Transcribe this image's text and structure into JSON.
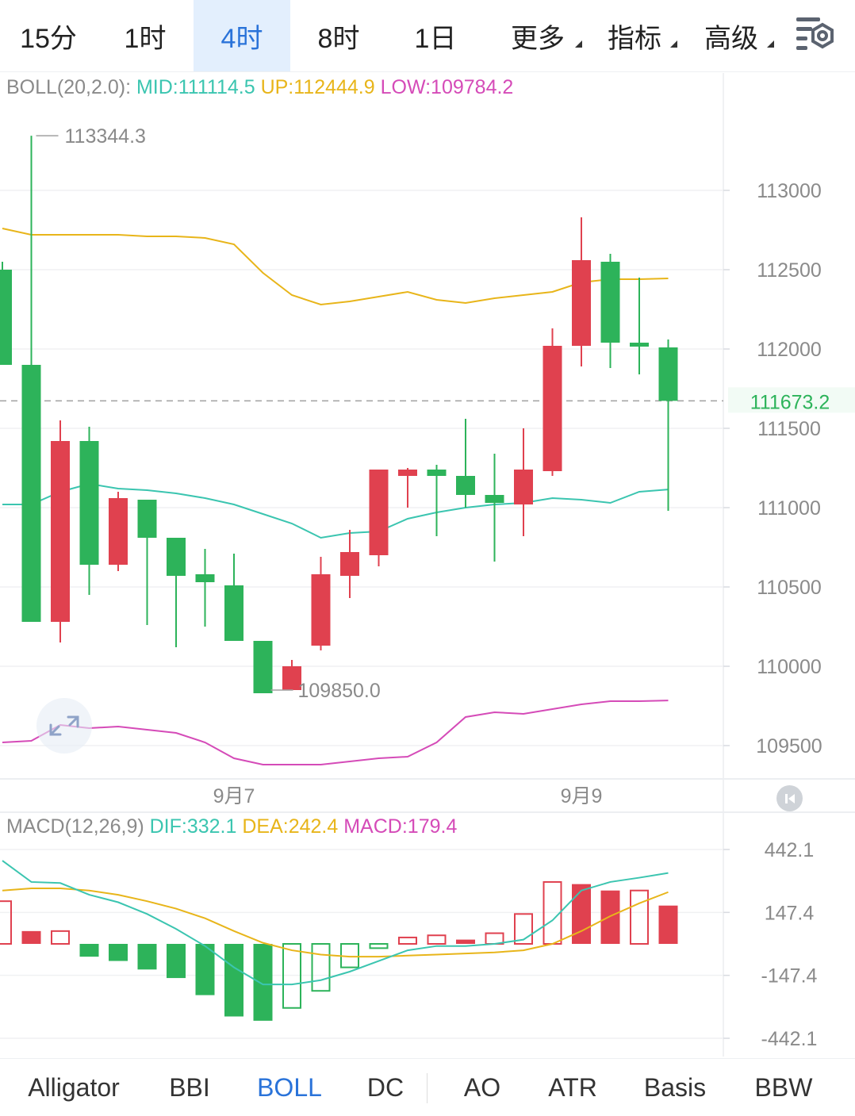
{
  "colors": {
    "up": "#e0414f",
    "down": "#2db35a",
    "mid": "#3bc5b0",
    "upper": "#e8b51a",
    "lower": "#d54bb8",
    "accent": "#2a73d9",
    "grid": "#f0f1f3",
    "axis_text": "#8a8a8a"
  },
  "timeframes": [
    {
      "label": "15分",
      "active": false
    },
    {
      "label": "1时",
      "active": false
    },
    {
      "label": "4时",
      "active": true
    },
    {
      "label": "8时",
      "active": false
    },
    {
      "label": "1日",
      "active": false
    },
    {
      "label": "更多",
      "active": false,
      "dropdown": true
    },
    {
      "label": "指标",
      "active": false,
      "dropdown": true
    },
    {
      "label": "高级",
      "active": false,
      "dropdown": true
    }
  ],
  "settings_icon": "chart-settings-icon",
  "boll_header": {
    "name": "BOLL(20,2.0):",
    "mid": "MID:111114.5",
    "up": "UP:112444.9",
    "low": "LOW:109784.2"
  },
  "macd_header": {
    "name": "MACD(12,26,9)",
    "dif": "DIF:332.1",
    "dea": "DEA:242.4",
    "macd": "MACD:179.4"
  },
  "price_axis": [
    "113000",
    "112500",
    "112000",
    "111500",
    "111000",
    "110500",
    "110000",
    "109500"
  ],
  "current_price": "111673.2",
  "high_marker": "113344.3",
  "low_marker": "109850.0",
  "date_labels": [
    "9月7",
    "9月9"
  ],
  "macd_axis": [
    "442.1",
    "147.4",
    "-147.4",
    "-442.1"
  ],
  "reset_icon": "reset-scroll-icon",
  "expand_icon": "expand-icon",
  "indicators": [
    {
      "label": "Alligator",
      "active": false
    },
    {
      "label": "BBI",
      "active": false
    },
    {
      "label": "BOLL",
      "active": true
    },
    {
      "label": "DC",
      "active": false
    },
    {
      "label": "AO",
      "active": false
    },
    {
      "label": "ATR",
      "active": false
    },
    {
      "label": "Basis",
      "active": false
    },
    {
      "label": "BBW",
      "active": false
    }
  ],
  "chart_data": {
    "type": "candlestick",
    "candles": [
      {
        "o": 112500,
        "h": 112550,
        "l": 111900,
        "c": 111900
      },
      {
        "o": 111900,
        "h": 113344.3,
        "l": 110300,
        "c": 110280
      },
      {
        "o": 110280,
        "h": 111550,
        "l": 110150,
        "c": 111420
      },
      {
        "o": 111420,
        "h": 111510,
        "l": 110450,
        "c": 110640
      },
      {
        "o": 110640,
        "h": 111100,
        "l": 110600,
        "c": 111060
      },
      {
        "o": 111050,
        "h": 111050,
        "l": 110260,
        "c": 110810
      },
      {
        "o": 110810,
        "h": 110810,
        "l": 110120,
        "c": 110570
      },
      {
        "o": 110580,
        "h": 110740,
        "l": 110250,
        "c": 110530
      },
      {
        "o": 110510,
        "h": 110710,
        "l": 110180,
        "c": 110160
      },
      {
        "o": 110160,
        "h": 110160,
        "l": 109850,
        "c": 109830
      },
      {
        "o": 109850,
        "h": 110040,
        "l": 109850,
        "c": 110000
      },
      {
        "o": 110130,
        "h": 110690,
        "l": 110100,
        "c": 110580
      },
      {
        "o": 110570,
        "h": 110860,
        "l": 110430,
        "c": 110720
      },
      {
        "o": 110700,
        "h": 111240,
        "l": 110630,
        "c": 111240
      },
      {
        "o": 111200,
        "h": 111250,
        "l": 111000,
        "c": 111240
      },
      {
        "o": 111240,
        "h": 111270,
        "l": 110820,
        "c": 111200
      },
      {
        "o": 111200,
        "h": 111560,
        "l": 111000,
        "c": 111080
      },
      {
        "o": 111080,
        "h": 111340,
        "l": 110660,
        "c": 111030
      },
      {
        "o": 111020,
        "h": 111500,
        "l": 110820,
        "c": 111240
      },
      {
        "o": 111230,
        "h": 112130,
        "l": 111200,
        "c": 112020
      },
      {
        "o": 112020,
        "h": 112830,
        "l": 111890,
        "c": 112560
      },
      {
        "o": 112550,
        "h": 112600,
        "l": 111880,
        "c": 112040
      },
      {
        "o": 112040,
        "h": 112450,
        "l": 111840,
        "c": 112020
      },
      {
        "o": 112010,
        "h": 112060,
        "l": 110980,
        "c": 111673.2
      }
    ],
    "boll": {
      "upper": [
        112760,
        112720,
        112720,
        112720,
        112720,
        112710,
        112710,
        112700,
        112660,
        112480,
        112340,
        112280,
        112300,
        112330,
        112360,
        112310,
        112290,
        112320,
        112340,
        112360,
        112420,
        112440,
        112440,
        112444.9
      ],
      "mid": [
        111020,
        111020,
        111100,
        111150,
        111120,
        111110,
        111090,
        111060,
        111020,
        110960,
        110900,
        110810,
        110840,
        110850,
        110930,
        110970,
        111000,
        111020,
        111030,
        111060,
        111050,
        111030,
        111100,
        111114.5
      ],
      "lower": [
        109520,
        109530,
        109630,
        109610,
        109620,
        109600,
        109580,
        109520,
        109420,
        109380,
        109380,
        109380,
        109400,
        109420,
        109430,
        109520,
        109680,
        109710,
        109700,
        109730,
        109760,
        109780,
        109780,
        109784.2
      ]
    },
    "macd": {
      "dif": [
        390,
        290,
        285,
        230,
        195,
        140,
        70,
        -10,
        -110,
        -190,
        -190,
        -170,
        -130,
        -80,
        -30,
        -10,
        -10,
        0,
        20,
        110,
        250,
        290,
        310,
        332.1
      ],
      "dea": [
        250,
        260,
        260,
        250,
        230,
        200,
        165,
        120,
        60,
        5,
        -30,
        -50,
        -60,
        -60,
        -55,
        -50,
        -45,
        -40,
        -30,
        0,
        60,
        130,
        190,
        242.4
      ],
      "hist": [
        200,
        60,
        60,
        -60,
        -80,
        -120,
        -160,
        -240,
        -340,
        -360,
        -300,
        -220,
        -110,
        -20,
        30,
        40,
        20,
        50,
        140,
        290,
        280,
        250,
        250,
        179.4
      ]
    },
    "ylim": [
      109300,
      113450
    ],
    "macd_ylim": [
      -442.1,
      442.1
    ]
  }
}
